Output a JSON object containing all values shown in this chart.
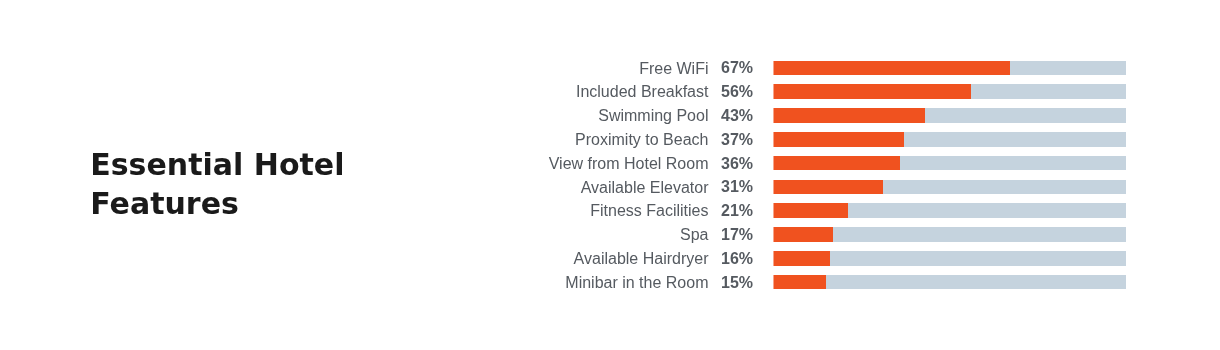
{
  "chart_data": {
    "type": "bar",
    "orientation": "horizontal",
    "stacked": true,
    "title": "Essential Hotel\nFeatures",
    "categories": [
      "Free WiFi",
      "Included Breakfast",
      "Swimming Pool",
      "Proximity to Beach",
      "View from Hotel Room",
      "Available Elevator",
      "Fitness Facilities",
      "Spa",
      "Available Hairdryer",
      "Minibar in the Room"
    ],
    "xlim": [
      0,
      100
    ],
    "tick_labels": "y",
    "series": [
      {
        "color": "#f0521f",
        "values": [
          67,
          56,
          43,
          37,
          36,
          31,
          21,
          17,
          16,
          15
        ],
        "value_labels": [
          "67%",
          "56%",
          "43%",
          "37%",
          "36%",
          "31%",
          "21%",
          "17%",
          "16%",
          "15%"
        ]
      },
      {
        "color": "#c5d3de",
        "values": [
          33,
          44,
          57,
          63,
          64,
          69,
          79,
          83,
          84,
          85
        ]
      }
    ]
  }
}
